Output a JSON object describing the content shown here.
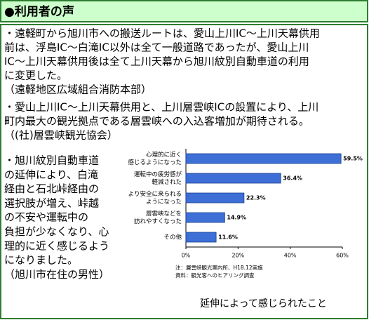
{
  "header": {
    "title": "●利用者の声"
  },
  "items": [
    {
      "lines": [
        "・遠軽町から旭川市への搬送ルートは、愛山上川IC～上川天幕供用",
        "前は、浮島IC～白滝IC以外は全て一般道路であったが、愛山上川",
        "IC～上川天幕供用後は全て上川天幕から旭川紋別自動車道の利用",
        "に変更した。",
        "（遠軽地区広域組合消防本部）"
      ]
    },
    {
      "lines": [
        "・愛山上川IC～上川天幕供用と、上川層雲峡ICの設置により、上川",
        "町内最大の観光拠点である層雲峡への入込客増加が期待される。",
        "（(社)層雲峡観光協会）"
      ]
    },
    {
      "lines": [
        "・旭川紋別自動車道",
        "の延伸により、白滝",
        "経由と石北峠経由の",
        "選択肢が増え、峠越",
        "の不安や運転中の",
        "負担が少なくなり、心",
        "理的に近く感じるよう",
        "になりました。",
        "（旭川市在住の男性）"
      ]
    }
  ],
  "chart_data": {
    "type": "bar",
    "orientation": "horizontal",
    "categories": [
      [
        "心理的に近く",
        "感じるようになった"
      ],
      [
        "運転中の疲労感が",
        "軽減された"
      ],
      [
        "より安全に来られる",
        "ようになった"
      ],
      [
        "層雲峡などを",
        "訪れやすくなった"
      ],
      [
        "その他"
      ]
    ],
    "values": [
      59.5,
      36.4,
      22.3,
      14.9,
      11.6
    ],
    "value_labels": [
      "59.5%",
      "36.4%",
      "22.3%",
      "14.9%",
      "11.6%"
    ],
    "color": "#3d6fd6",
    "xlim": [
      0,
      60
    ],
    "xticks": [
      {
        "value": 0,
        "label": "0%"
      },
      {
        "value": 20,
        "label": "20%"
      },
      {
        "value": 40,
        "label": "40%"
      },
      {
        "value": 60,
        "label": "60%"
      }
    ],
    "notes": [
      "注：層雲峡観光案内所、H18.12実施",
      "資料：観光客へのヒアリング調査"
    ],
    "caption": "延伸によって感じられたこと"
  }
}
